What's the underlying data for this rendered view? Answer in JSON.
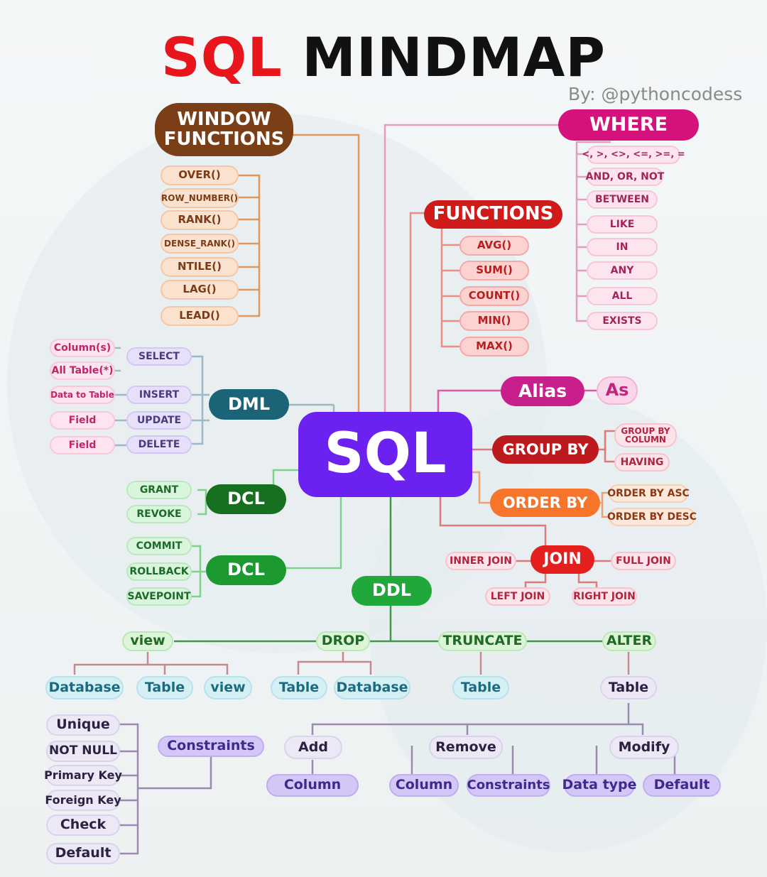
{
  "title": {
    "part1": "SQL",
    "part2": "MINDMAP"
  },
  "byline": "By: @pythoncodess",
  "center": {
    "label": "SQL"
  },
  "window_functions": {
    "title": "WINDOW FUNCTIONS",
    "items": [
      "OVER()",
      "ROW_NUMBER()",
      "RANK()",
      "DENSE_RANK()",
      "NTILE()",
      "LAG()",
      "LEAD()"
    ]
  },
  "where": {
    "title": "WHERE",
    "items": [
      "<, >, <>, <=, >=, =",
      "AND, OR, NOT",
      "BETWEEN",
      "LIKE",
      "IN",
      "ANY",
      "ALL",
      "EXISTS"
    ]
  },
  "functions": {
    "title": "FUNCTIONS",
    "items": [
      "AVG()",
      "SUM()",
      "COUNT()",
      "MIN()",
      "MAX()"
    ]
  },
  "alias": {
    "title": "Alias",
    "as": "As"
  },
  "group_by": {
    "title": "GROUP BY",
    "items": [
      "GROUP BY COLUMN",
      "HAVING"
    ]
  },
  "order_by": {
    "title": "ORDER BY",
    "items": [
      "ORDER BY ASC",
      "ORDER BY DESC"
    ]
  },
  "join": {
    "title": "JOIN",
    "items": [
      "INNER JOIN",
      "FULL JOIN",
      "LEFT JOIN",
      "RIGHT JOIN"
    ]
  },
  "dml": {
    "title": "DML",
    "items": [
      "SELECT",
      "INSERT",
      "UPDATE",
      "DELETE"
    ],
    "leaves": [
      "Column(s)",
      "All Table(*)",
      "Data to Table",
      "Field",
      "Field"
    ]
  },
  "dcl_1": {
    "title": "DCL",
    "items": [
      "GRANT",
      "REVOKE"
    ]
  },
  "dcl_2": {
    "title": "DCL",
    "items": [
      "COMMIT",
      "ROLLBACK",
      "SAVEPOINT"
    ]
  },
  "ddl": {
    "title": "DDL",
    "commands": [
      "view",
      "DROP",
      "TRUNCATE",
      "ALTER"
    ],
    "view_targets": [
      "Database",
      "Table",
      "view"
    ],
    "drop_targets": [
      "Table",
      "Database"
    ],
    "truncate_targets": [
      "Table"
    ],
    "alter_targets": [
      "Table"
    ]
  },
  "constraints": {
    "title": "Constraints",
    "items": [
      "Unique",
      "NOT NULL",
      "Primary Key",
      "Foreign Key",
      "Check",
      "Default"
    ]
  },
  "alter_ops": {
    "add": "Add",
    "remove": "Remove",
    "modify": "Modify",
    "add_items": [
      "Column"
    ],
    "remove_items": [
      "Column",
      "Constraints"
    ],
    "modify_items": [
      "Data type",
      "Default"
    ]
  }
}
